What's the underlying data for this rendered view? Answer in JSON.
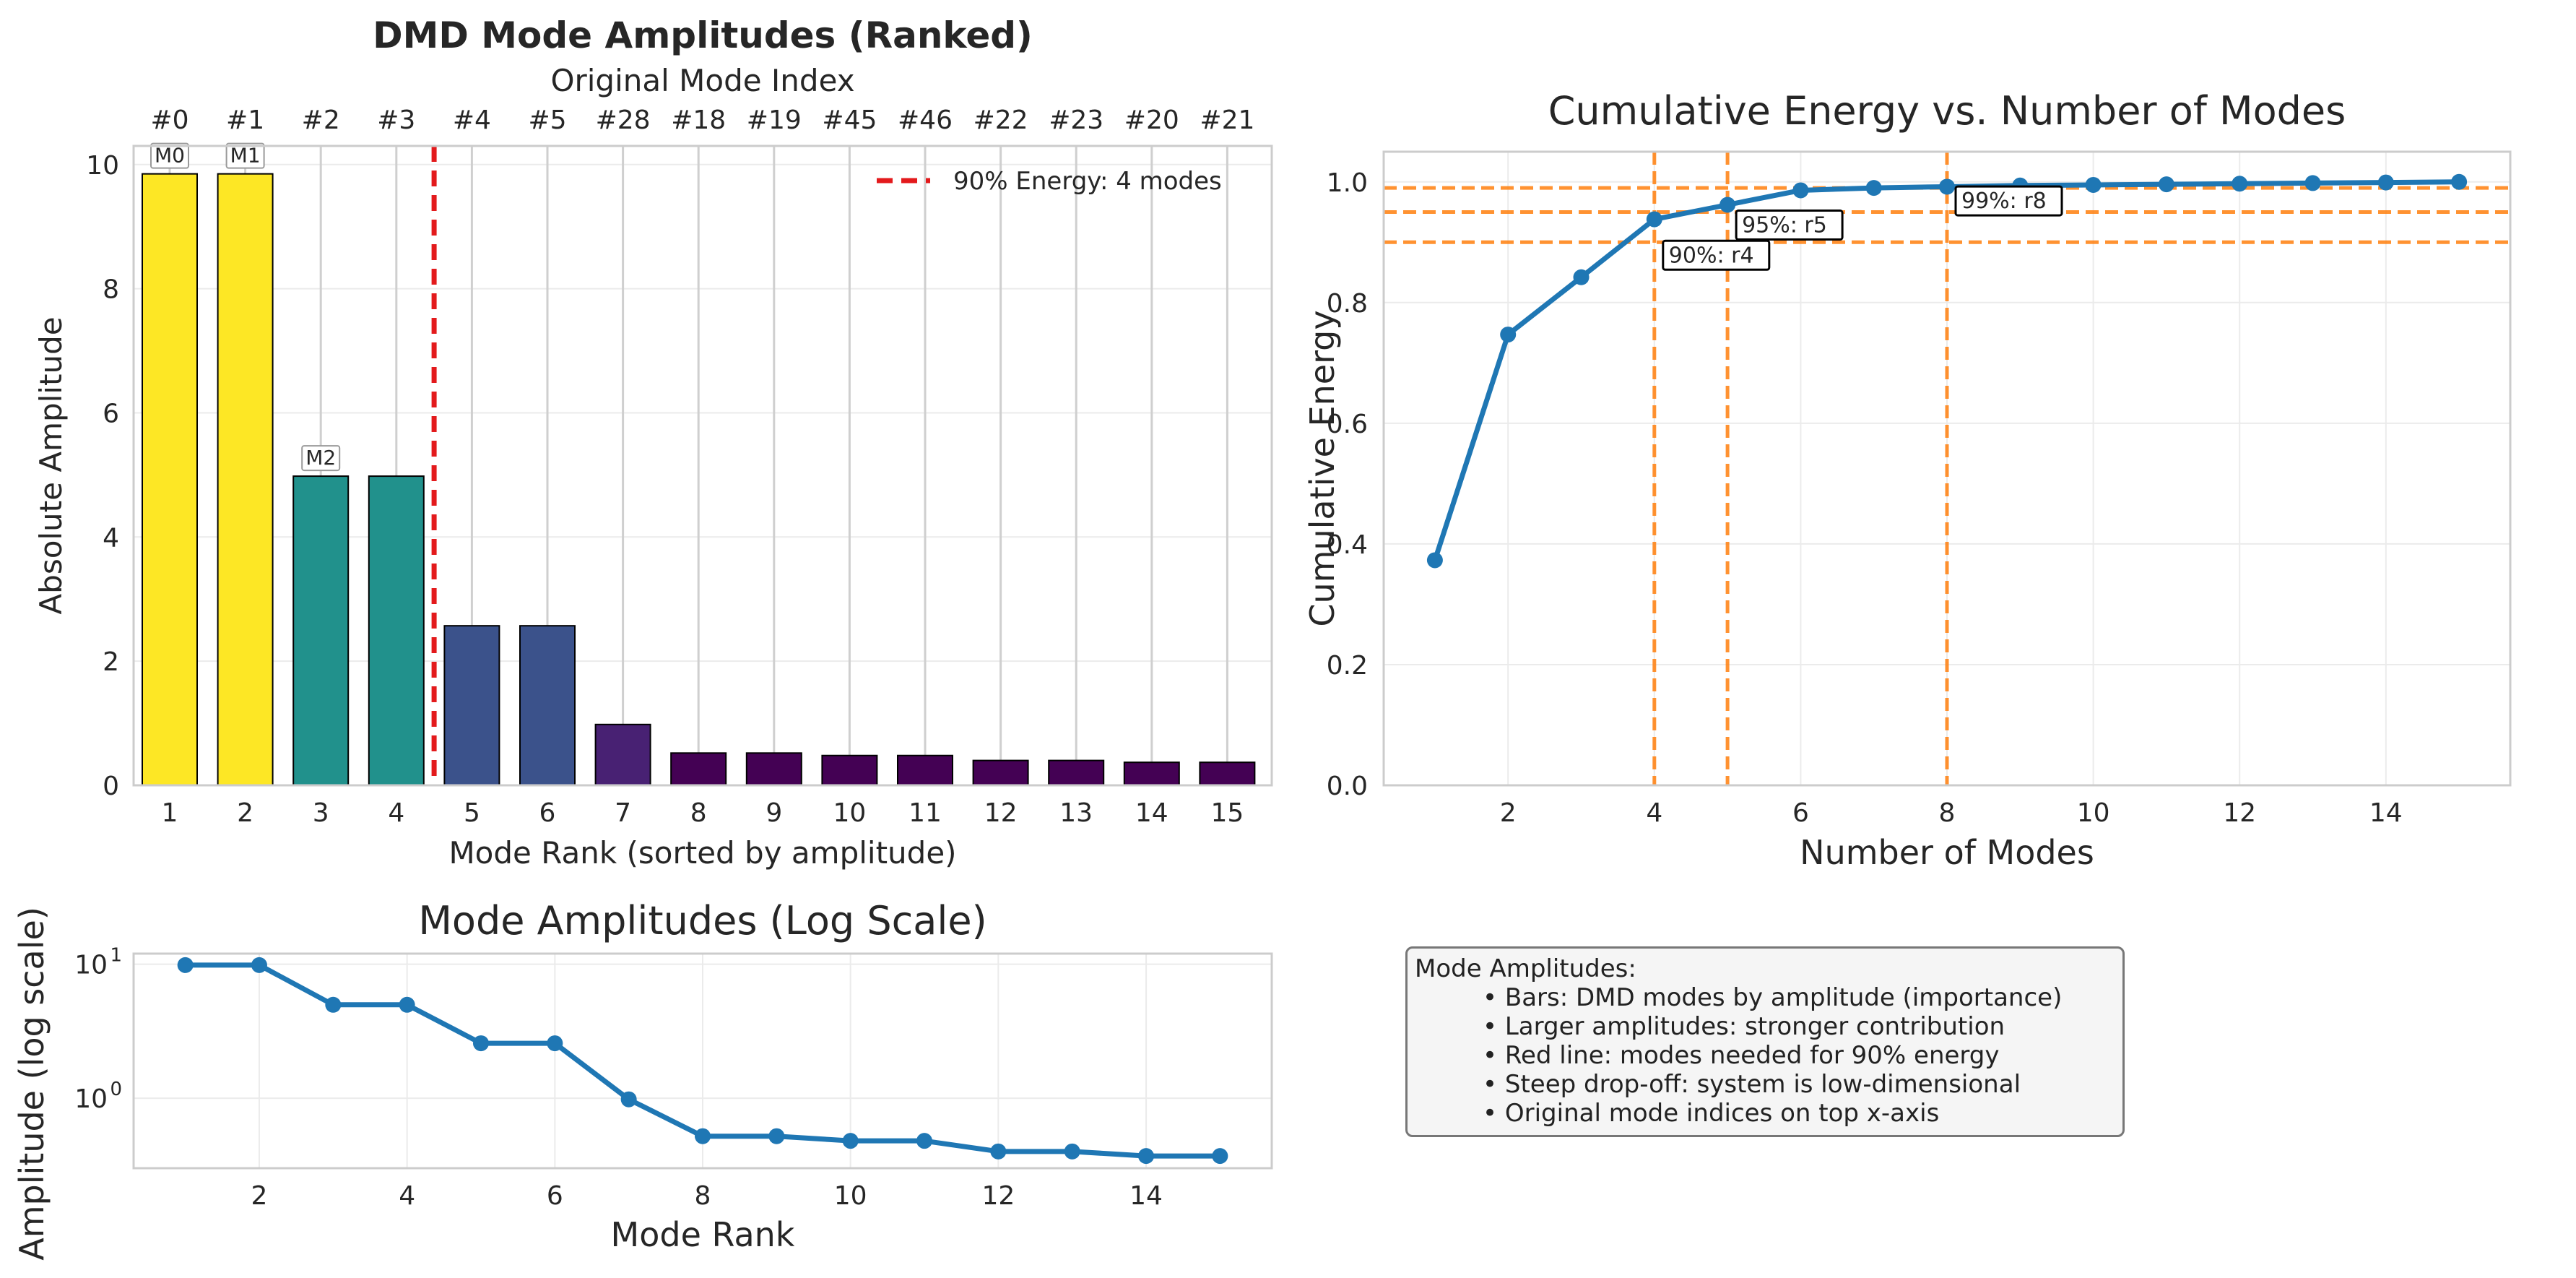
{
  "chart_data": [
    {
      "type": "bar",
      "title": "DMD Mode Amplitudes (Ranked)",
      "top_axis_label": "Original Mode Index",
      "top_tick_labels": [
        "#0",
        "#1",
        "#2",
        "#3",
        "#4",
        "#5",
        "#28",
        "#18",
        "#19",
        "#45",
        "#46",
        "#22",
        "#23",
        "#20",
        "#21"
      ],
      "xlabel": "Mode Rank (sorted by amplitude)",
      "ylabel": "Absolute Amplitude",
      "categories": [
        "1",
        "2",
        "3",
        "4",
        "5",
        "6",
        "7",
        "8",
        "9",
        "10",
        "11",
        "12",
        "13",
        "14",
        "15"
      ],
      "values": [
        9.85,
        9.85,
        4.98,
        4.98,
        2.57,
        2.57,
        0.98,
        0.52,
        0.52,
        0.48,
        0.48,
        0.4,
        0.4,
        0.37,
        0.37
      ],
      "bar_colors": [
        "#fde725",
        "#fde725",
        "#21918c",
        "#21918c",
        "#3b528b",
        "#3b528b",
        "#482173",
        "#440154",
        "#440154",
        "#440154",
        "#440154",
        "#440154",
        "#440154",
        "#440154",
        "#440154"
      ],
      "bar_annotations": [
        {
          "rank": 1,
          "text": "M0"
        },
        {
          "rank": 2,
          "text": "M1"
        },
        {
          "rank": 3,
          "text": "M2"
        }
      ],
      "threshold_line": {
        "x": 4.5,
        "color": "#e31a1c"
      },
      "legend": {
        "label": "90% Energy: 4 modes",
        "position": "top-right"
      },
      "ylim": [
        0,
        10.3
      ],
      "yticks": [
        0,
        2,
        4,
        6,
        8,
        10
      ],
      "grid": true
    },
    {
      "type": "line",
      "title": "Cumulative Energy vs. Number of Modes",
      "xlabel": "Number of Modes",
      "ylabel": "Cumulative Energy",
      "x": [
        1,
        2,
        3,
        4,
        5,
        6,
        7,
        8,
        9,
        10,
        11,
        12,
        13,
        14,
        15
      ],
      "y": [
        0.373,
        0.747,
        0.842,
        0.938,
        0.962,
        0.986,
        0.99,
        0.992,
        0.994,
        0.995,
        0.996,
        0.997,
        0.998,
        0.999,
        1.0
      ],
      "xlim": [
        0.3,
        15.7
      ],
      "ylim": [
        0,
        1.05
      ],
      "xticks": [
        2,
        4,
        6,
        8,
        10,
        12,
        14
      ],
      "yticks": [
        0.0,
        0.2,
        0.4,
        0.6,
        0.8,
        1.0
      ],
      "color": "#1f77b4",
      "threshold_lines": [
        {
          "energy": 0.9,
          "modes": 4,
          "label": "90%: r4"
        },
        {
          "energy": 0.95,
          "modes": 5,
          "label": "95%: r5"
        },
        {
          "energy": 0.99,
          "modes": 8,
          "label": "99%: r8"
        }
      ],
      "threshold_color": "#ff7f0e",
      "grid": true
    },
    {
      "type": "line",
      "title": "Mode Amplitudes (Log Scale)",
      "xlabel": "Mode Rank",
      "ylabel": "Amplitude (log scale)",
      "x": [
        1,
        2,
        3,
        4,
        5,
        6,
        7,
        8,
        9,
        10,
        11,
        12,
        13,
        14,
        15
      ],
      "y": [
        9.85,
        9.85,
        4.98,
        4.98,
        2.57,
        2.57,
        0.98,
        0.52,
        0.52,
        0.48,
        0.48,
        0.4,
        0.4,
        0.37,
        0.37
      ],
      "yscale": "log",
      "xlim": [
        0.3,
        15.7
      ],
      "ylim": [
        0.3,
        12
      ],
      "xticks": [
        2,
        4,
        6,
        8,
        10,
        12,
        14
      ],
      "yticks": [
        1,
        10
      ],
      "ytick_labels": [
        {
          "base": "10",
          "exp": "0"
        },
        {
          "base": "10",
          "exp": "1"
        }
      ],
      "color": "#1f77b4",
      "grid": true
    }
  ],
  "notes": {
    "title": "Mode Amplitudes:",
    "items": [
      "• Bars: DMD modes by amplitude (importance)",
      "• Larger amplitudes: stronger contribution",
      "• Red line: modes needed for 90% energy",
      "• Steep drop-off: system is low-dimensional",
      "• Original mode indices on top x-axis"
    ]
  }
}
